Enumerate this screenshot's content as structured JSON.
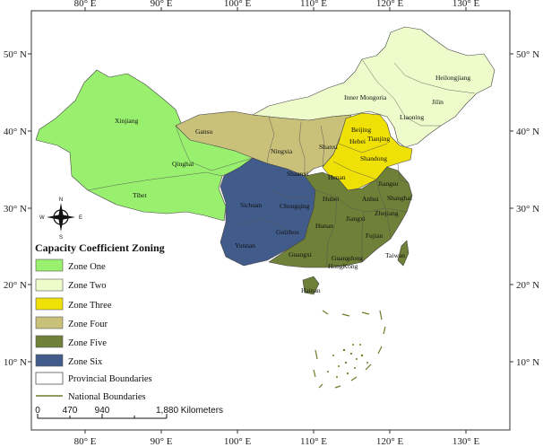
{
  "axes": {
    "top_longitudes": [
      "80° E",
      "90° E",
      "100° E",
      "110° E",
      "120° E",
      "130° E"
    ],
    "bottom_longitudes": [
      "80° E",
      "90° E",
      "100° E",
      "110° E",
      "120° E",
      "130° E"
    ],
    "left_latitudes": [
      "50° N",
      "40° N",
      "30° N",
      "20° N",
      "10° N"
    ],
    "right_latitudes": [
      "50° N",
      "40° N",
      "30° N",
      "20° N",
      "10° N"
    ]
  },
  "zone_colors": {
    "zone_one": "#99f06e",
    "zone_two": "#eefccb",
    "zone_three": "#efe106",
    "zone_four": "#c9c17a",
    "zone_five": "#6f8038",
    "zone_six": "#415b8a",
    "boundary_national": "#6f7a28"
  },
  "provinces": {
    "xinjiang": "Xinjiang",
    "qinghai": "Qinghai",
    "tibet": "Tibet",
    "gansu": "Gansu",
    "ningxia": "Ningxia",
    "shaanxi": "Shaanxi",
    "shanxi": "Shanxi",
    "inner_mongolia": "Inner Mongoria",
    "heilongjiang": "Heilongjiang",
    "jilin": "Jilin",
    "liaoning": "Liaoning",
    "beijing": "Beijing",
    "tianjin": "Tianjing",
    "hebei": "Hebei",
    "shandong": "Shandong",
    "henan": "Henan",
    "jiangsu": "Jiangsu",
    "anhui": "Anhui",
    "shanghai": "Shanghai",
    "hubei": "Hubei",
    "zhejiang": "Zhejiang",
    "jiangxi": "Jiangxi",
    "hunan": "Hunan",
    "fujian": "Fujian",
    "taiwan": "Taiwan",
    "guangxi": "Guangxi",
    "guangdong": "Guangdong",
    "hongkong": "HongKong",
    "hainan": "Hainan",
    "sichuan": "Sichuan",
    "chongqing": "Chongqing",
    "guizhou": "Guizhou",
    "yunnan": "Yunnan"
  },
  "compass": {
    "n": "N",
    "s": "S",
    "e": "E",
    "w": "W"
  },
  "legend": {
    "title": "Capacity Coefficient Zoning",
    "zone_one": "Zone One",
    "zone_two": "Zone Two",
    "zone_three": "Zone Three",
    "zone_four": "Zone Four",
    "zone_five": "Zone Five",
    "zone_six": "Zone Six",
    "provincial_boundaries": "Provincial Boundaries",
    "national_boundaries": "National Boundaries"
  },
  "scale_bar": {
    "ticks": [
      "0",
      "470",
      "940",
      "1,880 Kilometers"
    ]
  }
}
